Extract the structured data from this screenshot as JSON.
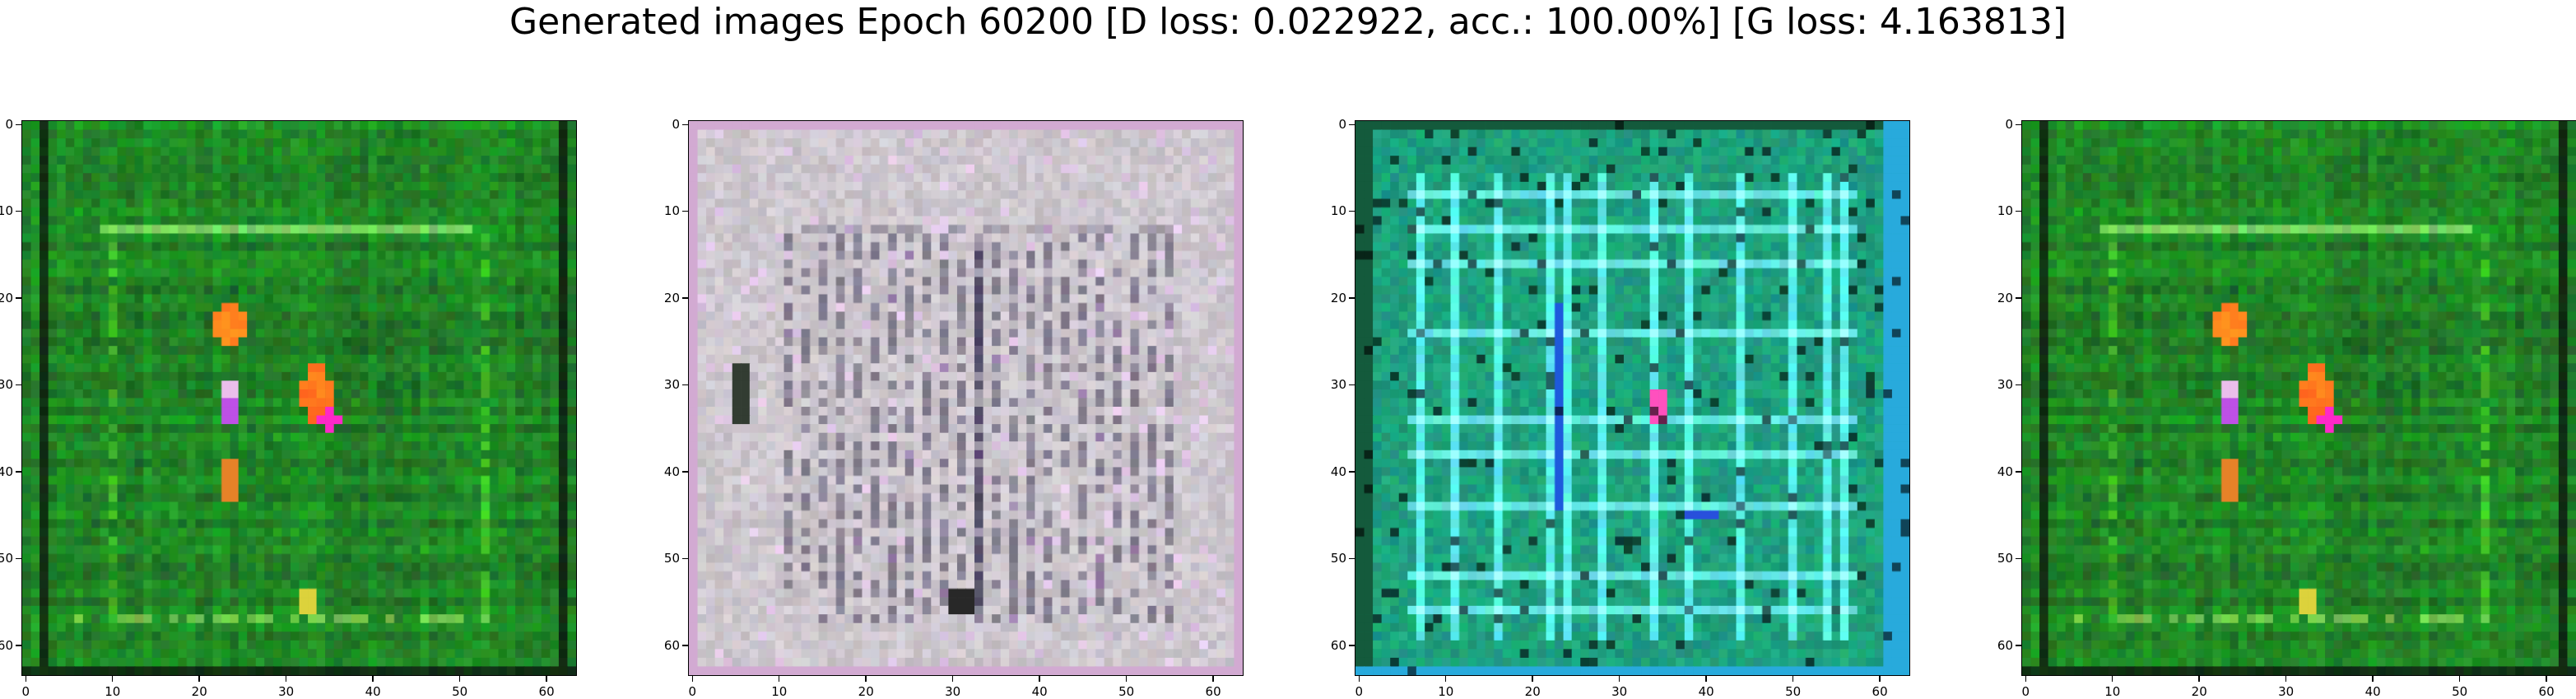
{
  "figure": {
    "suptitle": "Generated images Epoch 60200 [D loss: 0.022922, acc.: 100.00%] [G loss: 4.163813]"
  },
  "axes": {
    "range": [
      0,
      63
    ],
    "x_ticks": [
      "0",
      "10",
      "20",
      "30",
      "40",
      "50",
      "60"
    ],
    "y_ticks": [
      "0",
      "10",
      "20",
      "30",
      "40",
      "50",
      "60"
    ]
  },
  "panels": [
    {
      "name": "generated-image-1",
      "dominant_color": "#1f8a24",
      "content": "green grid texture with orange/red and magenta blobs"
    },
    {
      "name": "generated-image-2",
      "dominant_color": "#c9c3c4",
      "content": "gray-pink grid with dark vertical strokes"
    },
    {
      "name": "generated-image-3",
      "dominant_color": "#1aa97a",
      "content": "teal-cyan grid with blue lines and a pink blob"
    },
    {
      "name": "generated-image-4",
      "dominant_color": "#1f8a24",
      "content": "green grid texture with orange/red and magenta blobs"
    }
  ]
}
